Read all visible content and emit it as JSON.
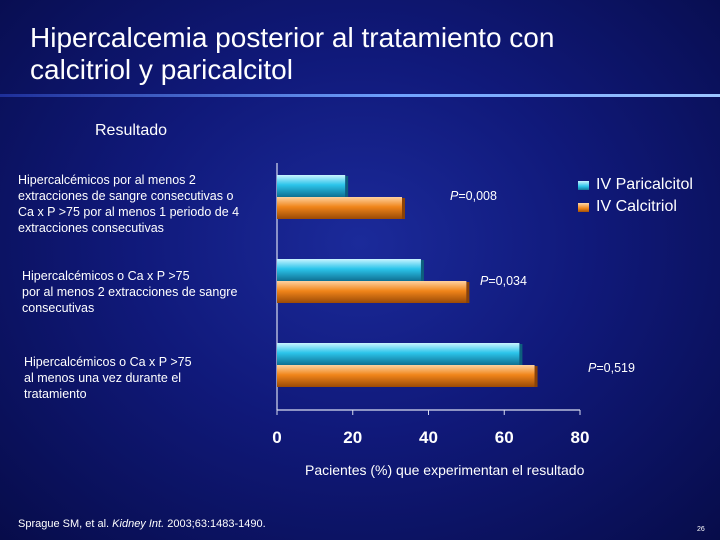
{
  "title_line1": "Hipercalcemia posterior al tratamiento con",
  "title_line2": "calcitriol y paricalcitol",
  "section_heading": "Resultado",
  "citation_pre": "Sprague SM, et al. ",
  "citation_journal": "Kidney Int.",
  "citation_post": " 2003;63:1483-1490.",
  "page_number": "26",
  "colors": {
    "paricalcitol": "#2bc4ea",
    "calcitriol": "#f0851a",
    "background": "#10197a"
  },
  "chart_data": {
    "type": "bar",
    "orientation": "horizontal",
    "categories": [
      {
        "lines": [
          "Hipercalcémicos por al menos 2",
          "extracciones de sangre consecutivas o",
          "Ca x P >75 por al menos 1 periodo de 4",
          "extracciones consecutivas"
        ]
      },
      {
        "lines": [
          "Hipercalcémicos o Ca x P >75",
          "por al menos 2 extracciones de sangre",
          "consecutivas"
        ]
      },
      {
        "lines": [
          "Hipercalcémicos o Ca x P >75",
          "al menos una vez durante el",
          "tratamiento"
        ]
      }
    ],
    "series": [
      {
        "name": "IV Paricalcitol",
        "values": [
          18,
          38,
          64
        ]
      },
      {
        "name": "IV Calcitriol",
        "values": [
          33,
          50,
          68
        ]
      }
    ],
    "annotations": [
      {
        "p_prefix": "P",
        "p_value": "=0,008"
      },
      {
        "p_prefix": "P",
        "p_value": "=0,034"
      },
      {
        "p_prefix": "P",
        "p_value": "=0,519"
      }
    ],
    "xticks": [
      "0",
      "20",
      "40",
      "60",
      "80"
    ],
    "xlim": [
      0,
      80
    ],
    "xlabel": "Pacientes (%) que experimentan el resultado",
    "ylabel": "",
    "grid": false,
    "legend_position": "top-right"
  }
}
